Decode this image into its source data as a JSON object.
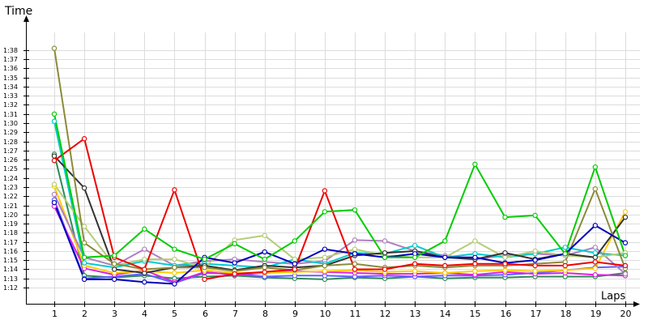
{
  "chart_data": {
    "type": "line",
    "y_label": "Time",
    "x_label": "Laps",
    "x": [
      1,
      2,
      3,
      4,
      5,
      6,
      7,
      8,
      9,
      10,
      11,
      12,
      13,
      14,
      15,
      16,
      17,
      18,
      19,
      20
    ],
    "xlim": [
      0.05,
      20.5
    ],
    "xticks": [
      1,
      2,
      3,
      4,
      5,
      6,
      7,
      8,
      9,
      10,
      11,
      12,
      13,
      14,
      15,
      16,
      17,
      18,
      19,
      20
    ],
    "ylim": [
      70.2,
      101.8
    ],
    "yticks": [
      {
        "value": 72,
        "label": "1:12"
      },
      {
        "value": 73,
        "label": "1:13"
      },
      {
        "value": 74,
        "label": "1:14"
      },
      {
        "value": 75,
        "label": "1:15"
      },
      {
        "value": 76,
        "label": "1:16"
      },
      {
        "value": 77,
        "label": "1:17"
      },
      {
        "value": 78,
        "label": "1:18"
      },
      {
        "value": 79,
        "label": "1:19"
      },
      {
        "value": 80,
        "label": "1:20"
      },
      {
        "value": 81,
        "label": "1:21"
      },
      {
        "value": 82,
        "label": "1:22"
      },
      {
        "value": 83,
        "label": "1:23"
      },
      {
        "value": 84,
        "label": "1:24"
      },
      {
        "value": 85,
        "label": "1:25"
      },
      {
        "value": 86,
        "label": "1:26"
      },
      {
        "value": 87,
        "label": "1:27"
      },
      {
        "value": 88,
        "label": "1:28"
      },
      {
        "value": 89,
        "label": "1:29"
      },
      {
        "value": 90,
        "label": "1:30"
      },
      {
        "value": 91,
        "label": "1:31"
      },
      {
        "value": 92,
        "label": "1:32"
      },
      {
        "value": 93,
        "label": "1:33"
      },
      {
        "value": 94,
        "label": "1:34"
      },
      {
        "value": 95,
        "label": "1:35"
      },
      {
        "value": 96,
        "label": "1:36"
      },
      {
        "value": 97,
        "label": "1:37"
      },
      {
        "value": 98,
        "label": "1:38"
      }
    ],
    "grid": true,
    "series": [
      {
        "color": "#2e8b57",
        "values": [
          86.6,
          73.3,
          73.1,
          73.3,
          73,
          73.2,
          73.3,
          73.1,
          73,
          72.9,
          73.1,
          73,
          73.2,
          73,
          73.1,
          73.1,
          73.2,
          73.2,
          73.2,
          73.6
        ]
      },
      {
        "color": "#6060ff",
        "values": [
          81.6,
          73,
          73.2,
          73.5,
          72.5,
          73.6,
          73.5,
          73.2,
          73.3,
          73.3,
          73.2,
          73.3,
          73.2,
          73.3,
          73.3,
          73.4,
          73.6,
          73.9,
          74.2,
          74.3
        ]
      },
      {
        "color": "#dd22dd",
        "values": [
          80.9,
          74.1,
          73.4,
          73.9,
          72.6,
          73.7,
          73.4,
          73.6,
          73.8,
          73.7,
          73.6,
          73.5,
          73.5,
          73.6,
          73.4,
          73.7,
          73.5,
          73.6,
          73.4,
          73.3
        ]
      },
      {
        "color": "#ffcc00",
        "values": [
          83.1,
          74.4,
          73.6,
          73.8,
          73.6,
          73.9,
          73.6,
          73.6,
          73.7,
          73.8,
          73.9,
          73.7,
          73.8,
          73.6,
          73.8,
          73.9,
          73.8,
          73.9,
          74.1,
          80.3
        ]
      },
      {
        "color": "#b080c0",
        "values": [
          82.2,
          75.3,
          74.4,
          76.2,
          74.4,
          74.9,
          75.1,
          74.8,
          74.6,
          74.9,
          77.2,
          77.1,
          76,
          75.5,
          75.1,
          75.5,
          75.7,
          75.5,
          76.4,
          73.5
        ]
      },
      {
        "color": "#00cccc",
        "values": [
          90.2,
          74.7,
          74.2,
          74.9,
          74.4,
          74.6,
          74.4,
          74.2,
          75.1,
          74.6,
          75.8,
          75.7,
          76.6,
          75.3,
          75.7,
          75.3,
          75.7,
          76.4,
          75.8,
          75.5
        ]
      },
      {
        "color": "#b5cc78",
        "values": [
          83.3,
          78.7,
          74.4,
          75.1,
          75.1,
          74.2,
          77.2,
          77.7,
          75.1,
          75.3,
          76.2,
          75.5,
          75.3,
          75.3,
          77.1,
          75.3,
          76,
          75.5,
          75.3,
          75.8
        ]
      },
      {
        "color": "#333333",
        "values": [
          86.4,
          82.9,
          74,
          73.6,
          74.2,
          74.4,
          73.9,
          74.4,
          74.2,
          74.4,
          75.5,
          75.8,
          76,
          75.3,
          75.1,
          75.8,
          75.1,
          75.7,
          75.3,
          79.7
        ]
      },
      {
        "color": "#8b8b3a",
        "values": [
          98.2,
          76.9,
          74.6,
          74,
          74.2,
          74.2,
          73.8,
          74.2,
          73.9,
          74.4,
          74.6,
          74.2,
          74.4,
          74.2,
          74.4,
          74.4,
          74.6,
          74.8,
          82.8,
          74.1
        ]
      },
      {
        "color": "#0000bb",
        "values": [
          81.3,
          72.9,
          72.9,
          72.6,
          72.4,
          75.3,
          74.7,
          75.9,
          74.6,
          76.2,
          75.7,
          75.3,
          75.7,
          75.3,
          75.3,
          74.7,
          75,
          75.7,
          78.8,
          76.9
        ]
      },
      {
        "color": "#ee0000",
        "values": [
          85.9,
          88.3,
          75.3,
          74,
          82.7,
          72.9,
          73.5,
          73.7,
          74,
          82.6,
          74,
          74,
          74.6,
          74.4,
          74.6,
          74.6,
          74.4,
          74.4,
          74.8,
          74.4
        ]
      },
      {
        "color": "#00cc00",
        "values": [
          91,
          75.3,
          75.5,
          78.4,
          76.2,
          75.1,
          76.8,
          75.1,
          77.1,
          80.3,
          80.5,
          75.3,
          75.3,
          77.1,
          85.5,
          79.7,
          79.9,
          75.7,
          85.2,
          75.5
        ]
      }
    ]
  }
}
